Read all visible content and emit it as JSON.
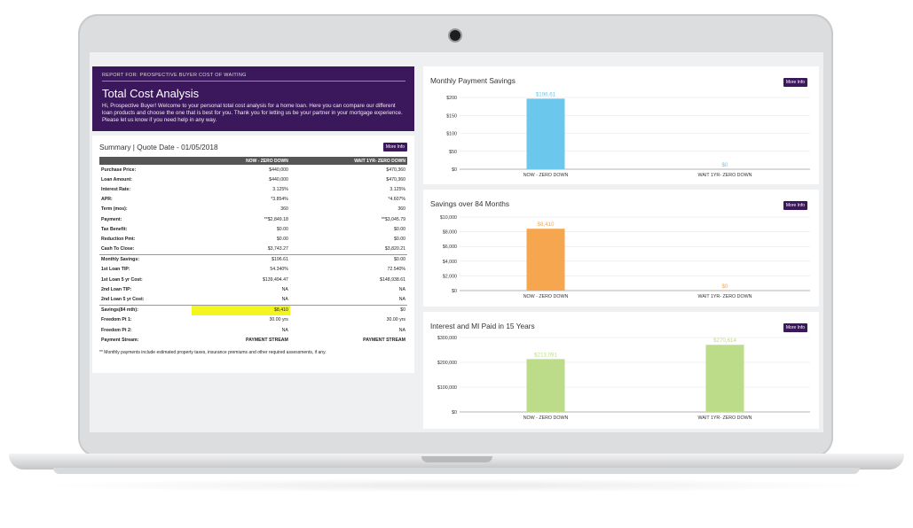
{
  "report_label": "REPORT FOR: PROSPECTIVE BUYER COST OF WAITING",
  "hero": {
    "title": "Total Cost Analysis",
    "text": "Hi, Prospective Buyer! Welcome to your personal total cost analysis for a home loan. Here you can compare our different loan products and choose the one that is best for you. Thank you for letting us be your partner in your mortgage experience. Please let us know if you need help in any way."
  },
  "summary": {
    "title": "Summary  |  Quote Date - 01/05/2018",
    "more_info": "More Info",
    "columns": [
      "NOW - ZERO DOWN",
      "WAIT 1YR- ZERO DOWN"
    ],
    "rows": [
      {
        "label": "Purchase Price:",
        "a": "$440,000",
        "b": "$470,360"
      },
      {
        "label": "Loan Amount:",
        "a": "$440,000",
        "b": "$470,360"
      },
      {
        "label": "Interest Rate:",
        "a": "3.125%",
        "b": "3.125%"
      },
      {
        "label": "APR:",
        "a": "*3.854%",
        "b": "*4.607%"
      },
      {
        "label": "Term (mos):",
        "a": "360",
        "b": "360"
      },
      {
        "label": "Payment:",
        "a": "**$2,849.18",
        "b": "**$3,045.79"
      },
      {
        "label": "Tax Benefit:",
        "a": "$0.00",
        "b": "$0.00"
      },
      {
        "label": "Reduction Pmt:",
        "a": "$0.00",
        "b": "$0.00"
      },
      {
        "label": "Cash To Close:",
        "a": "$3,743.27",
        "b": "$3,820.21"
      },
      {
        "label": "Monthly Savings:",
        "a": "$196.61",
        "b": "$0.00"
      },
      {
        "label": "1st Loan TIP:",
        "a": "54.340%",
        "b": "72.540%"
      },
      {
        "label": "1st Loan 5 yr Cost:",
        "a": "$139,494.47",
        "b": "$148,938.61"
      },
      {
        "label": "2nd Loan TIP:",
        "a": "NA",
        "b": "NA"
      },
      {
        "label": "2nd Loan 5 yr Cost:",
        "a": "NA",
        "b": "NA"
      },
      {
        "label": "Savings(84 mth):",
        "a": "$8,410",
        "b": "$0"
      },
      {
        "label": "Freedom Pt 1:",
        "a": "30.00 yrs",
        "b": "30.00 yrs"
      },
      {
        "label": "Freedom Pt 2:",
        "a": "NA",
        "b": "NA"
      },
      {
        "label": "Payment Stream:",
        "a": "PAYMENT STREAM",
        "b": "PAYMENT STREAM"
      }
    ],
    "footnote": "** Monthly payments include estimated property taxes, insurance premiums and other required assessments, if any."
  },
  "chart_data": [
    {
      "type": "bar",
      "title": "Monthly Payment Savings",
      "categories": [
        "NOW - ZERO DOWN",
        "WAIT 1YR- ZERO DOWN"
      ],
      "values": [
        196.61,
        0
      ],
      "labels": [
        "$196.61",
        "$0"
      ],
      "ticks": [
        "$0",
        "$50",
        "$100",
        "$150",
        "$200"
      ],
      "ylim": [
        0,
        200
      ],
      "color": "#6cc7ec",
      "more_info": "More Info"
    },
    {
      "type": "bar",
      "title": "Savings over 84 Months",
      "categories": [
        "NOW - ZERO DOWN",
        "WAIT 1YR- ZERO DOWN"
      ],
      "values": [
        8410,
        0
      ],
      "labels": [
        "$8,410",
        "$0"
      ],
      "ticks": [
        "$0",
        "$2,000",
        "$4,000",
        "$6,000",
        "$8,000",
        "$10,000"
      ],
      "ylim": [
        0,
        10000
      ],
      "color": "#f7a650",
      "more_info": "More Info"
    },
    {
      "type": "bar",
      "title": "Interest and MI Paid in 15 Years",
      "categories": [
        "NOW - ZERO DOWN",
        "WAIT 1YR- ZERO DOWN"
      ],
      "values": [
        213091,
        270614
      ],
      "labels": [
        "$213,091",
        "$270,614"
      ],
      "ticks": [
        "$0",
        "$100,000",
        "$200,000",
        "$300,000"
      ],
      "ylim": [
        0,
        300000
      ],
      "color": "#bcdc8a",
      "more_info": "More Info"
    }
  ]
}
